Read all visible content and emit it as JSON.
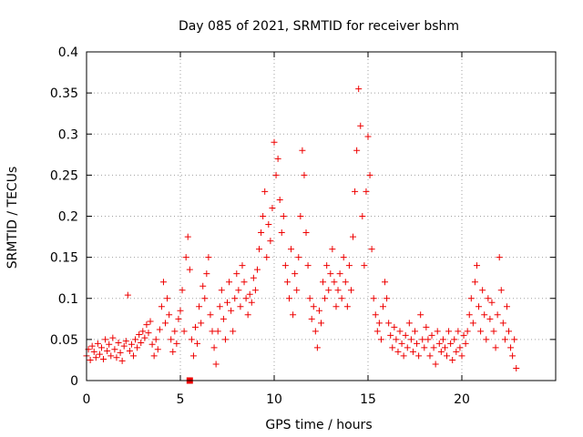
{
  "chart_data": {
    "type": "scatter",
    "title": "Day 085 of 2021, SRMTID for receiver bshm",
    "xlabel": "GPS time / hours",
    "ylabel": "SRMTID / TECUs",
    "xlim": [
      0,
      25
    ],
    "ylim": [
      0,
      0.4
    ],
    "xticks": [
      0,
      5,
      10,
      15,
      20
    ],
    "xtick_labels": [
      "0",
      "5",
      "10",
      "15",
      "20"
    ],
    "yticks": [
      0,
      0.05,
      0.1,
      0.15,
      0.2,
      0.25,
      0.3,
      0.35,
      0.4
    ],
    "ytick_labels": [
      "0",
      "0.05",
      "0.1",
      "0.15",
      "0.2",
      "0.25",
      "0.3",
      "0.35",
      "0.4"
    ],
    "grid": true,
    "marker": "plus",
    "color": "#ee0000",
    "gap_marker": {
      "x": 5.5,
      "y": 0
    },
    "series": [
      {
        "name": "SRMTID",
        "points": [
          [
            0.0,
            0.03
          ],
          [
            0.1,
            0.038
          ],
          [
            0.2,
            0.025
          ],
          [
            0.3,
            0.042
          ],
          [
            0.4,
            0.035
          ],
          [
            0.5,
            0.028
          ],
          [
            0.6,
            0.045
          ],
          [
            0.7,
            0.032
          ],
          [
            0.8,
            0.04
          ],
          [
            0.9,
            0.026
          ],
          [
            1.0,
            0.05
          ],
          [
            1.1,
            0.036
          ],
          [
            1.2,
            0.044
          ],
          [
            1.3,
            0.03
          ],
          [
            1.4,
            0.052
          ],
          [
            1.5,
            0.038
          ],
          [
            1.6,
            0.028
          ],
          [
            1.7,
            0.046
          ],
          [
            1.8,
            0.034
          ],
          [
            1.9,
            0.024
          ],
          [
            2.0,
            0.042
          ],
          [
            2.1,
            0.048
          ],
          [
            2.2,
            0.104
          ],
          [
            2.3,
            0.036
          ],
          [
            2.4,
            0.044
          ],
          [
            2.5,
            0.03
          ],
          [
            2.6,
            0.05
          ],
          [
            2.7,
            0.04
          ],
          [
            2.8,
            0.056
          ],
          [
            2.9,
            0.046
          ],
          [
            3.0,
            0.06
          ],
          [
            3.1,
            0.052
          ],
          [
            3.2,
            0.068
          ],
          [
            3.3,
            0.058
          ],
          [
            3.4,
            0.072
          ],
          [
            3.5,
            0.044
          ],
          [
            3.6,
            0.03
          ],
          [
            3.7,
            0.05
          ],
          [
            3.8,
            0.038
          ],
          [
            3.9,
            0.062
          ],
          [
            4.0,
            0.09
          ],
          [
            4.1,
            0.12
          ],
          [
            4.2,
            0.07
          ],
          [
            4.3,
            0.1
          ],
          [
            4.4,
            0.08
          ],
          [
            4.5,
            0.05
          ],
          [
            4.6,
            0.035
          ],
          [
            4.7,
            0.06
          ],
          [
            4.8,
            0.045
          ],
          [
            4.9,
            0.075
          ],
          [
            5.0,
            0.085
          ],
          [
            5.1,
            0.11
          ],
          [
            5.2,
            0.06
          ],
          [
            5.3,
            0.15
          ],
          [
            5.4,
            0.175
          ],
          [
            5.5,
            0.135
          ],
          [
            5.6,
            0.05
          ],
          [
            5.7,
            0.03
          ],
          [
            5.8,
            0.065
          ],
          [
            5.9,
            0.045
          ],
          [
            6.0,
            0.09
          ],
          [
            6.1,
            0.07
          ],
          [
            6.2,
            0.115
          ],
          [
            6.3,
            0.1
          ],
          [
            6.4,
            0.13
          ],
          [
            6.5,
            0.15
          ],
          [
            6.6,
            0.08
          ],
          [
            6.7,
            0.06
          ],
          [
            6.8,
            0.04
          ],
          [
            6.9,
            0.02
          ],
          [
            7.0,
            0.06
          ],
          [
            7.1,
            0.09
          ],
          [
            7.2,
            0.11
          ],
          [
            7.3,
            0.075
          ],
          [
            7.4,
            0.05
          ],
          [
            7.5,
            0.095
          ],
          [
            7.6,
            0.12
          ],
          [
            7.7,
            0.085
          ],
          [
            7.8,
            0.06
          ],
          [
            7.9,
            0.1
          ],
          [
            8.0,
            0.13
          ],
          [
            8.1,
            0.11
          ],
          [
            8.2,
            0.09
          ],
          [
            8.3,
            0.14
          ],
          [
            8.4,
            0.12
          ],
          [
            8.5,
            0.1
          ],
          [
            8.6,
            0.08
          ],
          [
            8.7,
            0.105
          ],
          [
            8.8,
            0.095
          ],
          [
            8.9,
            0.125
          ],
          [
            9.0,
            0.11
          ],
          [
            9.1,
            0.135
          ],
          [
            9.2,
            0.16
          ],
          [
            9.3,
            0.18
          ],
          [
            9.4,
            0.2
          ],
          [
            9.5,
            0.23
          ],
          [
            9.6,
            0.15
          ],
          [
            9.7,
            0.19
          ],
          [
            9.8,
            0.17
          ],
          [
            9.9,
            0.21
          ],
          [
            10.0,
            0.29
          ],
          [
            10.1,
            0.25
          ],
          [
            10.2,
            0.27
          ],
          [
            10.3,
            0.22
          ],
          [
            10.4,
            0.18
          ],
          [
            10.5,
            0.2
          ],
          [
            10.6,
            0.14
          ],
          [
            10.7,
            0.12
          ],
          [
            10.8,
            0.1
          ],
          [
            10.9,
            0.16
          ],
          [
            11.0,
            0.08
          ],
          [
            11.1,
            0.13
          ],
          [
            11.2,
            0.11
          ],
          [
            11.3,
            0.15
          ],
          [
            11.4,
            0.2
          ],
          [
            11.5,
            0.28
          ],
          [
            11.6,
            0.25
          ],
          [
            11.7,
            0.18
          ],
          [
            11.8,
            0.14
          ],
          [
            11.9,
            0.1
          ],
          [
            12.0,
            0.075
          ],
          [
            12.1,
            0.09
          ],
          [
            12.2,
            0.06
          ],
          [
            12.3,
            0.04
          ],
          [
            12.4,
            0.085
          ],
          [
            12.5,
            0.07
          ],
          [
            12.6,
            0.12
          ],
          [
            12.7,
            0.1
          ],
          [
            12.8,
            0.14
          ],
          [
            12.9,
            0.11
          ],
          [
            13.0,
            0.13
          ],
          [
            13.1,
            0.16
          ],
          [
            13.2,
            0.12
          ],
          [
            13.3,
            0.09
          ],
          [
            13.4,
            0.11
          ],
          [
            13.5,
            0.13
          ],
          [
            13.6,
            0.1
          ],
          [
            13.7,
            0.15
          ],
          [
            13.8,
            0.12
          ],
          [
            13.9,
            0.09
          ],
          [
            14.0,
            0.14
          ],
          [
            14.1,
            0.11
          ],
          [
            14.2,
            0.175
          ],
          [
            14.3,
            0.23
          ],
          [
            14.4,
            0.28
          ],
          [
            14.5,
            0.355
          ],
          [
            14.6,
            0.31
          ],
          [
            14.7,
            0.2
          ],
          [
            14.8,
            0.14
          ],
          [
            14.9,
            0.23
          ],
          [
            15.0,
            0.297
          ],
          [
            15.1,
            0.25
          ],
          [
            15.2,
            0.16
          ],
          [
            15.3,
            0.1
          ],
          [
            15.4,
            0.08
          ],
          [
            15.5,
            0.06
          ],
          [
            15.6,
            0.07
          ],
          [
            15.7,
            0.05
          ],
          [
            15.8,
            0.09
          ],
          [
            15.9,
            0.12
          ],
          [
            16.0,
            0.1
          ],
          [
            16.1,
            0.07
          ],
          [
            16.2,
            0.055
          ],
          [
            16.3,
            0.04
          ],
          [
            16.4,
            0.065
          ],
          [
            16.5,
            0.05
          ],
          [
            16.6,
            0.035
          ],
          [
            16.7,
            0.06
          ],
          [
            16.8,
            0.045
          ],
          [
            16.9,
            0.03
          ],
          [
            17.0,
            0.055
          ],
          [
            17.1,
            0.04
          ],
          [
            17.2,
            0.07
          ],
          [
            17.3,
            0.05
          ],
          [
            17.4,
            0.035
          ],
          [
            17.5,
            0.06
          ],
          [
            17.6,
            0.045
          ],
          [
            17.7,
            0.03
          ],
          [
            17.8,
            0.08
          ],
          [
            17.9,
            0.05
          ],
          [
            18.0,
            0.04
          ],
          [
            18.1,
            0.065
          ],
          [
            18.2,
            0.05
          ],
          [
            18.3,
            0.03
          ],
          [
            18.4,
            0.055
          ],
          [
            18.5,
            0.04
          ],
          [
            18.6,
            0.02
          ],
          [
            18.7,
            0.06
          ],
          [
            18.8,
            0.045
          ],
          [
            18.9,
            0.035
          ],
          [
            19.0,
            0.05
          ],
          [
            19.1,
            0.04
          ],
          [
            19.2,
            0.03
          ],
          [
            19.3,
            0.06
          ],
          [
            19.4,
            0.045
          ],
          [
            19.5,
            0.025
          ],
          [
            19.6,
            0.05
          ],
          [
            19.7,
            0.035
          ],
          [
            19.8,
            0.06
          ],
          [
            19.9,
            0.04
          ],
          [
            20.0,
            0.03
          ],
          [
            20.1,
            0.055
          ],
          [
            20.2,
            0.045
          ],
          [
            20.3,
            0.06
          ],
          [
            20.4,
            0.08
          ],
          [
            20.5,
            0.1
          ],
          [
            20.6,
            0.07
          ],
          [
            20.7,
            0.12
          ],
          [
            20.8,
            0.14
          ],
          [
            20.9,
            0.09
          ],
          [
            21.0,
            0.06
          ],
          [
            21.1,
            0.11
          ],
          [
            21.2,
            0.08
          ],
          [
            21.3,
            0.05
          ],
          [
            21.4,
            0.1
          ],
          [
            21.5,
            0.075
          ],
          [
            21.6,
            0.095
          ],
          [
            21.7,
            0.06
          ],
          [
            21.8,
            0.04
          ],
          [
            21.9,
            0.08
          ],
          [
            22.0,
            0.15
          ],
          [
            22.1,
            0.11
          ],
          [
            22.2,
            0.07
          ],
          [
            22.3,
            0.05
          ],
          [
            22.4,
            0.09
          ],
          [
            22.5,
            0.06
          ],
          [
            22.6,
            0.04
          ],
          [
            22.7,
            0.03
          ],
          [
            22.8,
            0.05
          ],
          [
            22.9,
            0.015
          ]
        ]
      }
    ]
  }
}
